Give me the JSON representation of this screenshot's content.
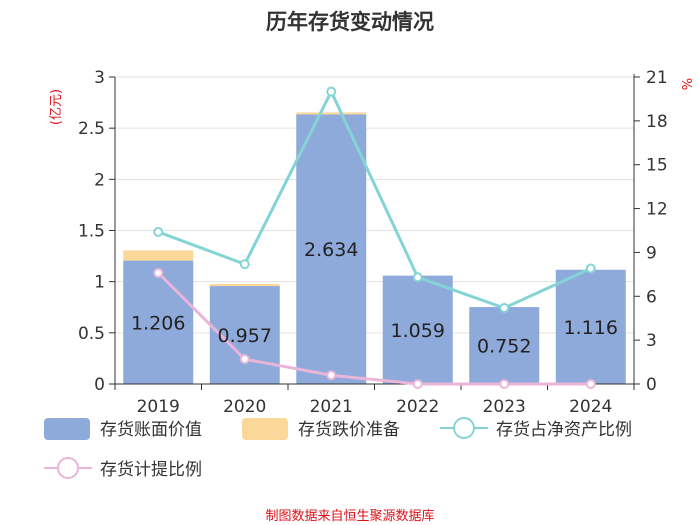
{
  "chart_data": {
    "type": "bar",
    "title": "历年存货变动情况",
    "left_unit": "(亿元)",
    "right_unit": "%",
    "categories": [
      "2019",
      "2020",
      "2021",
      "2022",
      "2023",
      "2024"
    ],
    "left_axis": {
      "ylim": [
        0,
        3
      ],
      "ticks": [
        "0",
        "0.5",
        "1",
        "1.5",
        "2",
        "2.5",
        "3"
      ]
    },
    "right_axis": {
      "ylim": [
        0,
        21
      ],
      "ticks": [
        "0",
        "3",
        "6",
        "9",
        "12",
        "15",
        "18",
        "21"
      ]
    },
    "series": [
      {
        "name": "存货账面价值",
        "kind": "bar",
        "axis": "left",
        "color": "#8eaadb",
        "values": [
          1.206,
          0.957,
          2.634,
          1.059,
          0.752,
          1.116
        ],
        "labels": [
          "1.206",
          "0.957",
          "2.634",
          "1.059",
          "0.752",
          "1.116"
        ]
      },
      {
        "name": "存货跌价准备",
        "kind": "bar-stack",
        "axis": "left",
        "color": "#fcd79a",
        "values": [
          0.1,
          0.02,
          0.02,
          0.0,
          0.0,
          0.0
        ]
      },
      {
        "name": "存货占净资产比例",
        "kind": "line",
        "axis": "right",
        "color": "#84d4d6",
        "values": [
          10.4,
          8.2,
          20.0,
          7.3,
          5.2,
          7.9
        ]
      },
      {
        "name": "存货计提比例",
        "kind": "line",
        "axis": "right",
        "color": "#e9b5d8",
        "values": [
          7.6,
          1.7,
          0.6,
          0.0,
          0.0,
          0.0
        ]
      }
    ],
    "grid": true,
    "legend_position": "bottom"
  },
  "source": "制图数据来自恒生聚源数据库"
}
